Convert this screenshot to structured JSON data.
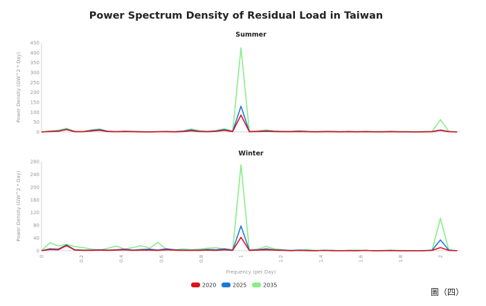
{
  "title": "Power Spectrum Density of Residual Load in Taiwan",
  "figure_label": "圖（四）",
  "colors": {
    "2020": "#e0101a",
    "2025": "#1f78d6",
    "2035": "#86ee86"
  },
  "chart_data": [
    {
      "type": "line",
      "title": "Summer",
      "ylabel": "Power Density (GW^2 * Day)",
      "xlabel": "",
      "ylim": [
        0,
        450
      ],
      "yticks": [
        0,
        50,
        100,
        150,
        200,
        250,
        300,
        350,
        400,
        450
      ],
      "xlim": [
        0,
        2.1
      ],
      "x": [
        0,
        0.0417,
        0.0833,
        0.125,
        0.1667,
        0.2083,
        0.25,
        0.2917,
        0.3333,
        0.375,
        0.4167,
        0.4583,
        0.5,
        0.5417,
        0.5833,
        0.625,
        0.6667,
        0.7083,
        0.75,
        0.7917,
        0.8333,
        0.875,
        0.9167,
        0.9583,
        1.0,
        1.0417,
        1.0833,
        1.125,
        1.1667,
        1.2083,
        1.25,
        1.2917,
        1.3333,
        1.375,
        1.4167,
        1.4583,
        1.5,
        1.5417,
        1.5833,
        1.625,
        1.6667,
        1.7083,
        1.75,
        1.7917,
        1.8333,
        1.875,
        1.9167,
        1.9583,
        2.0,
        2.0417,
        2.0833
      ],
      "series": [
        {
          "name": "2020",
          "values": [
            0,
            2,
            3,
            12,
            1,
            1,
            5,
            8,
            2,
            1,
            2,
            1,
            0,
            0,
            1,
            1,
            0,
            2,
            6,
            2,
            1,
            3,
            8,
            2,
            85,
            1,
            2,
            3,
            2,
            1,
            1,
            2,
            1,
            0,
            1,
            1,
            0,
            1,
            0,
            1,
            0,
            0,
            1,
            0,
            0,
            0,
            0,
            1,
            8,
            1,
            0
          ]
        },
        {
          "name": "2025",
          "values": [
            0,
            3,
            5,
            14,
            2,
            1,
            8,
            12,
            3,
            1,
            3,
            2,
            1,
            0,
            1,
            2,
            1,
            4,
            10,
            4,
            2,
            5,
            12,
            3,
            130,
            2,
            3,
            6,
            3,
            2,
            2,
            4,
            2,
            1,
            2,
            2,
            1,
            2,
            1,
            2,
            1,
            1,
            2,
            1,
            1,
            0,
            1,
            2,
            10,
            2,
            0
          ]
        },
        {
          "name": "2035",
          "values": [
            0,
            4,
            8,
            18,
            3,
            2,
            10,
            15,
            4,
            2,
            4,
            3,
            2,
            1,
            2,
            3,
            2,
            5,
            15,
            6,
            3,
            7,
            16,
            4,
            425,
            3,
            4,
            10,
            5,
            3,
            3,
            6,
            3,
            2,
            3,
            3,
            2,
            3,
            2,
            3,
            2,
            2,
            3,
            2,
            2,
            1,
            2,
            3,
            62,
            3,
            0
          ]
        }
      ]
    },
    {
      "type": "line",
      "title": "Winter",
      "ylabel": "Power Density (GW^2 * Day)",
      "xlabel": "Frequency (per Day)",
      "ylim": [
        0,
        280
      ],
      "yticks": [
        0,
        40,
        80,
        120,
        160,
        200,
        240,
        280
      ],
      "xlim": [
        0,
        2.1
      ],
      "xticks": [
        0,
        0.2,
        0.4,
        0.6,
        0.8,
        1,
        1.2,
        1.4,
        1.6,
        1.8,
        2
      ],
      "x": [
        0,
        0.0417,
        0.0833,
        0.125,
        0.1667,
        0.2083,
        0.25,
        0.2917,
        0.3333,
        0.375,
        0.4167,
        0.4583,
        0.5,
        0.5417,
        0.5833,
        0.625,
        0.6667,
        0.7083,
        0.75,
        0.7917,
        0.8333,
        0.875,
        0.9167,
        0.9583,
        1.0,
        1.0417,
        1.0833,
        1.125,
        1.1667,
        1.2083,
        1.25,
        1.2917,
        1.3333,
        1.375,
        1.4167,
        1.4583,
        1.5,
        1.5417,
        1.5833,
        1.625,
        1.6667,
        1.7083,
        1.75,
        1.7917,
        1.8333,
        1.875,
        1.9167,
        1.9583,
        2.0,
        2.0417,
        2.0833
      ],
      "series": [
        {
          "name": "2020",
          "values": [
            0,
            4,
            3,
            16,
            2,
            1,
            1,
            2,
            1,
            2,
            3,
            1,
            2,
            2,
            1,
            3,
            2,
            1,
            1,
            1,
            2,
            1,
            3,
            1,
            42,
            1,
            2,
            3,
            2,
            1,
            0,
            1,
            0,
            0,
            1,
            0,
            0,
            0,
            0,
            1,
            0,
            0,
            0,
            0,
            0,
            0,
            0,
            1,
            10,
            1,
            0
          ]
        },
        {
          "name": "2025",
          "values": [
            0,
            6,
            5,
            18,
            3,
            2,
            2,
            3,
            2,
            3,
            5,
            2,
            4,
            5,
            2,
            6,
            3,
            2,
            2,
            2,
            4,
            3,
            6,
            2,
            78,
            2,
            3,
            6,
            3,
            2,
            1,
            2,
            1,
            0,
            1,
            1,
            0,
            1,
            0,
            1,
            0,
            0,
            1,
            0,
            0,
            0,
            0,
            2,
            34,
            2,
            0
          ]
        },
        {
          "name": "2035",
          "values": [
            0,
            25,
            15,
            20,
            13,
            10,
            5,
            2,
            8,
            15,
            5,
            10,
            16,
            8,
            26,
            5,
            2,
            6,
            3,
            5,
            8,
            10,
            5,
            3,
            270,
            2,
            5,
            14,
            6,
            3,
            1,
            2,
            4,
            1,
            2,
            1,
            0,
            1,
            2,
            1,
            0,
            1,
            2,
            1,
            0,
            0,
            1,
            2,
            102,
            3,
            0
          ]
        }
      ]
    }
  ],
  "legend": [
    {
      "label": "2020",
      "key": "2020"
    },
    {
      "label": "2025",
      "key": "2025"
    },
    {
      "label": "2035",
      "key": "2035"
    }
  ]
}
